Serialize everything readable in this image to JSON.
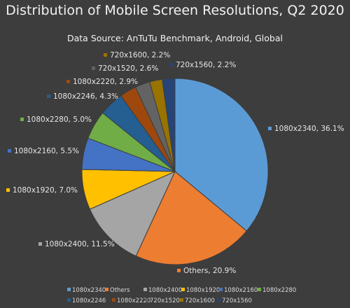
{
  "chart_data": {
    "type": "pie",
    "title": "Distribution of Mobile Screen Resolutions, Q2 2020",
    "subtitle": "Data Source: AnTuTu Benchmark, Android, Global",
    "slices": [
      {
        "label": "1080x2340",
        "value": 36.1,
        "color": "#5b9bd5"
      },
      {
        "label": "Others",
        "value": 20.9,
        "color": "#ed7d31"
      },
      {
        "label": "1080x2400",
        "value": 11.5,
        "color": "#a5a5a5"
      },
      {
        "label": "1080x1920",
        "value": 7.0,
        "color": "#ffc000"
      },
      {
        "label": "1080x2160",
        "value": 5.5,
        "color": "#4472c4"
      },
      {
        "label": "1080x2280",
        "value": 5.0,
        "color": "#70ad47"
      },
      {
        "label": "1080x2246",
        "value": 4.3,
        "color": "#255e91"
      },
      {
        "label": "1080x2220",
        "value": 2.9,
        "color": "#9e480e"
      },
      {
        "label": "720x1520",
        "value": 2.6,
        "color": "#636363"
      },
      {
        "label": "720x1600",
        "value": 2.2,
        "color": "#997300"
      },
      {
        "label": "720x1560",
        "value": 2.2,
        "color": "#264478"
      }
    ],
    "legend_position": "bottom"
  }
}
